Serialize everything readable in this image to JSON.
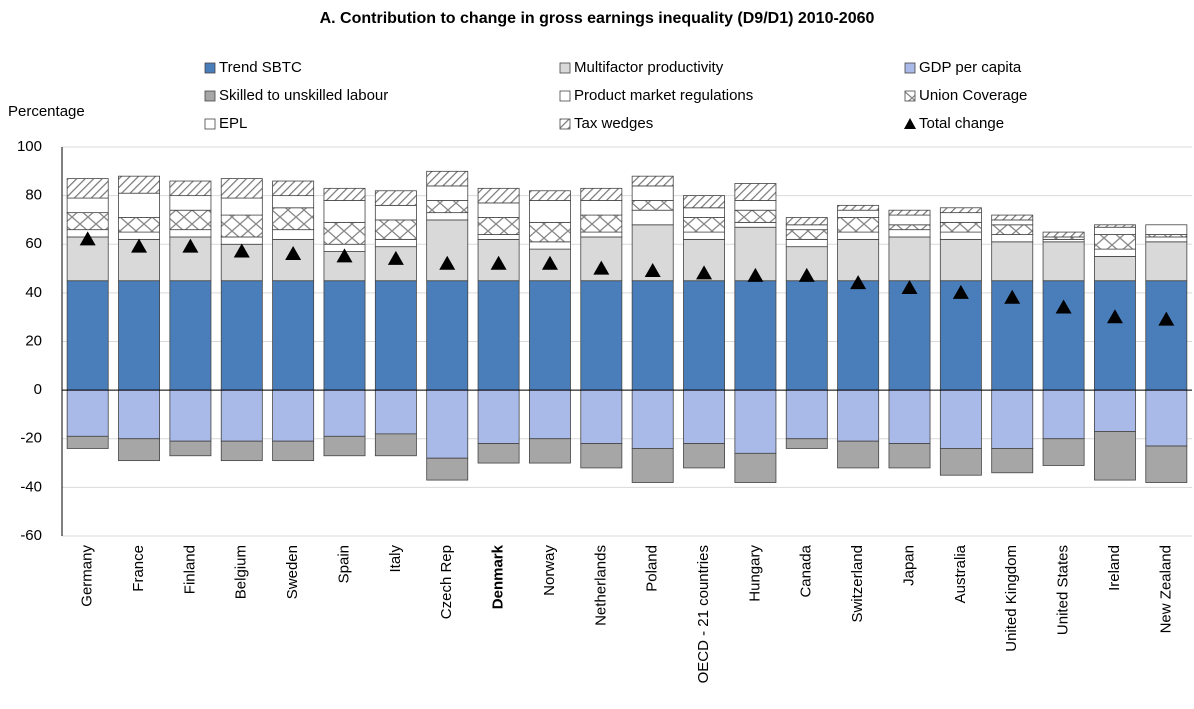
{
  "chart_data": {
    "type": "stacked_bar",
    "title": "A. Contribution to change in gross earnings inequality (D9/D1) 2010-2060",
    "y_label": "Percentage",
    "categories": [
      "Germany",
      "France",
      "Finland",
      "Belgium",
      "Sweden",
      "Spain",
      "Italy",
      "Czech Rep",
      "Denmark",
      "Norway",
      "Netherlands",
      "Poland",
      "OECD - 21 countries",
      "Hungary",
      "Canada",
      "Switzerland",
      "Japan",
      "Australia",
      "United Kingdom",
      "United States",
      "Ireland",
      "New Zealand"
    ],
    "highlight": 8,
    "series": [
      {
        "name": "Trend SBTC",
        "color": "#4a7ebb",
        "pattern": "none",
        "values": [
          45,
          45,
          45,
          45,
          45,
          45,
          45,
          45,
          45,
          45,
          45,
          45,
          45,
          45,
          45,
          45,
          45,
          45,
          45,
          45,
          45,
          45
        ]
      },
      {
        "name": "Multifactor productivity",
        "color": "#d9d9d9",
        "pattern": "none",
        "values": [
          18,
          17,
          18,
          15,
          17,
          12,
          14,
          25,
          17,
          13,
          18,
          23,
          17,
          22,
          14,
          17,
          18,
          17,
          16,
          16,
          10,
          16
        ]
      },
      {
        "name": "GDP per capita",
        "color": "#a9b9e8",
        "pattern": "none",
        "values": [
          -19,
          -20,
          -21,
          -21,
          -21,
          -19,
          -18,
          -28,
          -22,
          -20,
          -22,
          -24,
          -22,
          -26,
          -20,
          -21,
          -22,
          -24,
          -24,
          -20,
          -17,
          -23
        ]
      },
      {
        "name": "Skilled to unskilled labour",
        "color": "#a6a6a6",
        "pattern": "none",
        "values": [
          -5,
          -9,
          -6,
          -8,
          -8,
          -8,
          -9,
          -9,
          -8,
          -10,
          -10,
          -14,
          -10,
          -12,
          -4,
          -11,
          -10,
          -11,
          -10,
          -11,
          -20,
          -15
        ]
      },
      {
        "name": "Product market regulations",
        "color": "#ffffff",
        "pattern": "none",
        "values": [
          3,
          3,
          3,
          3,
          4,
          3,
          3,
          3,
          2,
          3,
          2,
          6,
          3,
          2,
          3,
          3,
          3,
          3,
          3,
          1,
          3,
          2
        ]
      },
      {
        "name": "Union Coverage",
        "color": "#ffffff",
        "pattern": "cross",
        "values": [
          7,
          6,
          8,
          9,
          9,
          9,
          8,
          5,
          7,
          8,
          7,
          4,
          6,
          5,
          4,
          6,
          2,
          4,
          4,
          1,
          6,
          1
        ]
      },
      {
        "name": "EPL",
        "color": "#ffffff",
        "pattern": "none",
        "values": [
          6,
          10,
          6,
          7,
          5,
          9,
          6,
          6,
          6,
          9,
          6,
          6,
          4,
          4,
          2,
          3,
          4,
          4,
          2,
          0,
          3,
          4
        ]
      },
      {
        "name": "Tax wedges",
        "color": "#ffffff",
        "pattern": "hatch",
        "values": [
          8,
          7,
          6,
          8,
          6,
          5,
          6,
          6,
          6,
          4,
          5,
          4,
          5,
          7,
          3,
          2,
          2,
          2,
          2,
          2,
          1,
          0
        ]
      }
    ],
    "total": {
      "name": "Total change",
      "color": "#000000",
      "values": [
        62,
        59,
        59,
        57,
        56,
        55,
        54,
        52,
        52,
        52,
        50,
        49,
        48,
        47,
        47,
        44,
        42,
        40,
        38,
        34,
        30,
        29
      ]
    },
    "ylim": [
      -60,
      100
    ],
    "yticks": [
      -60,
      -40,
      -20,
      0,
      20,
      40,
      60,
      80,
      100
    ],
    "grid": true
  }
}
